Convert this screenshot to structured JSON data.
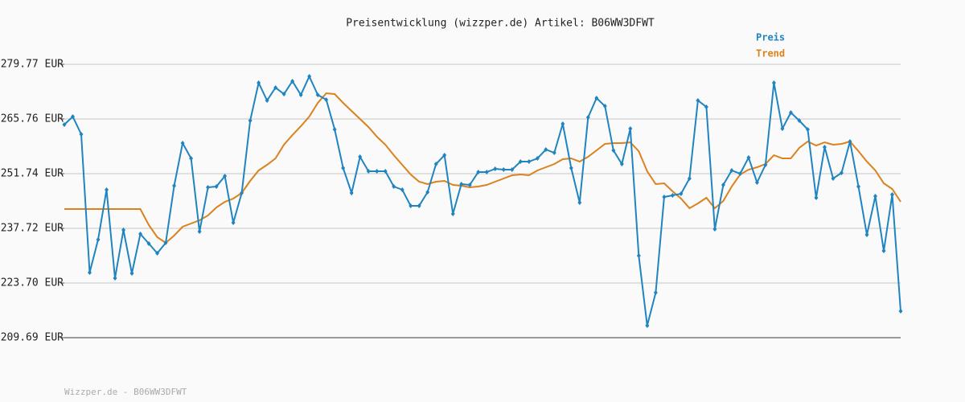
{
  "chart_data": {
    "type": "line",
    "title": "Preisentwicklung (wizzper.de) Artikel: B06WW3DFWT",
    "footer": "Wizzper.de - B06WW3DFWT",
    "categories": [
      null,
      null,
      null,
      null,
      null,
      null,
      null,
      null,
      null,
      null,
      null,
      null,
      null,
      null,
      null,
      null,
      null,
      null,
      null,
      null,
      null,
      null,
      null,
      null,
      null,
      null,
      null,
      null,
      null,
      null,
      null,
      null,
      null,
      null,
      null,
      null,
      null,
      null,
      null,
      null,
      null,
      null,
      null,
      null,
      null,
      null,
      null,
      null,
      null,
      null,
      null,
      null,
      null,
      null,
      null,
      null,
      null,
      null,
      null,
      null,
      null,
      null,
      null,
      null,
      null,
      null,
      null,
      null,
      null,
      null,
      null,
      null,
      null,
      null,
      null,
      null,
      null,
      null,
      null,
      null,
      null,
      null,
      null,
      null,
      null,
      null,
      null,
      null,
      null,
      null,
      null,
      null,
      null,
      null,
      null,
      null,
      null,
      null,
      null,
      null
    ],
    "series": [
      {
        "name": "Preis",
        "color": "#1f84c0",
        "markers": true,
        "values": [
          264.31,
          266.37,
          261.84,
          226.39,
          234.84,
          247.62,
          224.95,
          237.31,
          226.18,
          236.28,
          233.81,
          231.34,
          234.02,
          248.65,
          259.57,
          255.66,
          236.9,
          248.24,
          248.44,
          251.12,
          239.17,
          246.79,
          265.34,
          275.03,
          270.5,
          273.79,
          272.14,
          275.44,
          271.94,
          276.68,
          271.94,
          270.7,
          263.08,
          253.18,
          246.79,
          256.07,
          252.36,
          252.36,
          252.36,
          248.44,
          247.62,
          243.5,
          243.5,
          247.0,
          254.21,
          256.48,
          241.44,
          249.06,
          248.85,
          252.15,
          252.15,
          252.98,
          252.77,
          252.77,
          254.83,
          254.83,
          255.66,
          257.92,
          257.1,
          264.52,
          253.18,
          244.32,
          266.17,
          271.11,
          269.05,
          257.72,
          254.21,
          263.28,
          230.72,
          212.79,
          221.24,
          245.76,
          246.18,
          246.59,
          250.5,
          270.5,
          268.85,
          237.52,
          248.85,
          252.56,
          251.74,
          255.86,
          249.47,
          254.01,
          275.03,
          263.28,
          267.4,
          265.34,
          263.08,
          245.56,
          258.54,
          250.5,
          251.95,
          259.98,
          248.44,
          236.08,
          245.97,
          231.95,
          246.38,
          216.5
        ]
      },
      {
        "name": "Trend",
        "color": "#d9821e",
        "markers": false,
        "values": [
          242.67,
          242.67,
          242.67,
          242.67,
          242.67,
          242.67,
          242.67,
          242.67,
          242.67,
          242.67,
          238.55,
          235.46,
          234.02,
          235.87,
          238.14,
          238.96,
          239.79,
          241.02,
          243.08,
          244.53,
          245.35,
          246.79,
          249.88,
          252.56,
          254.01,
          255.66,
          259.16,
          261.63,
          263.9,
          266.37,
          269.88,
          272.35,
          272.14,
          269.88,
          267.82,
          265.76,
          263.69,
          261.22,
          259.16,
          256.48,
          254.01,
          251.53,
          249.68,
          249.06,
          249.68,
          249.88,
          248.85,
          248.65,
          248.24,
          248.44,
          248.85,
          249.68,
          250.5,
          251.33,
          251.53,
          251.33,
          252.56,
          253.39,
          254.21,
          255.45,
          255.66,
          254.83,
          256.07,
          257.72,
          259.37,
          259.57,
          259.57,
          259.78,
          257.51,
          252.36,
          249.06,
          249.27,
          247.21,
          245.35,
          242.88,
          244.11,
          245.56,
          242.88,
          244.73,
          248.44,
          251.53,
          252.77,
          253.39,
          254.21,
          256.48,
          255.66,
          255.66,
          258.33,
          259.98,
          258.95,
          259.78,
          259.16,
          259.37,
          259.98,
          257.51,
          254.83,
          252.56,
          249.27,
          247.83,
          244.53
        ]
      }
    ],
    "ylim": [
      209.69,
      279.77
    ],
    "yticks": [
      {
        "value": 209.69,
        "label": "209.69 EUR"
      },
      {
        "value": 223.7,
        "label": "223.70 EUR"
      },
      {
        "value": 237.72,
        "label": "237.72 EUR"
      },
      {
        "value": 251.74,
        "label": "251.74 EUR"
      },
      {
        "value": 265.76,
        "label": "265.76 EUR"
      },
      {
        "value": 279.77,
        "label": "279.77 EUR"
      }
    ],
    "grid": true,
    "legend": "top-right"
  }
}
